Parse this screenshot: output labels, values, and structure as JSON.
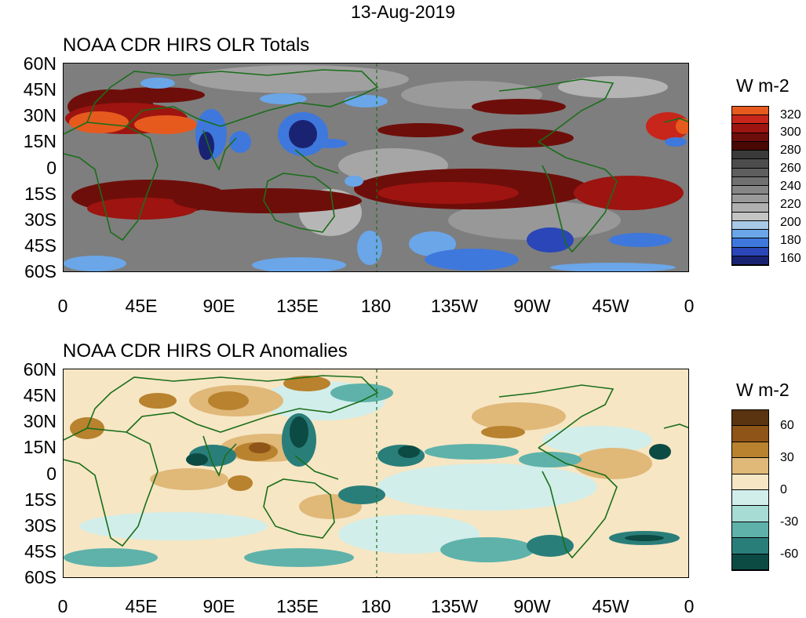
{
  "date": "13-Aug-2019",
  "panels": [
    {
      "id": "totals",
      "title": "NOAA CDR HIRS OLR Totals",
      "units": "W m-2",
      "colorbar_labels": [
        "320",
        "300",
        "280",
        "260",
        "240",
        "220",
        "200",
        "180",
        "160"
      ],
      "colorbar_colors": [
        "#e65a1e",
        "#c8261a",
        "#9e1410",
        "#6e0e0a",
        "#4a0804",
        "#3a3a3a",
        "#4c4c4c",
        "#5e5e5e",
        "#707070",
        "#868686",
        "#9a9a9a",
        "#b0b0b0",
        "#c4c4c4",
        "#a8c8e6",
        "#6aa6e8",
        "#3e78dc",
        "#2a46b8",
        "#1a2272"
      ]
    },
    {
      "id": "anomalies",
      "title": "NOAA CDR HIRS OLR Anomalies",
      "units": "W m-2",
      "colorbar_labels": [
        "60",
        "30",
        "0",
        "-30",
        "-60"
      ],
      "colorbar_colors": [
        "#5a3410",
        "#8e5418",
        "#b8822e",
        "#e0b878",
        "#f6e6c4",
        "#d2eeea",
        "#a6dcd4",
        "#5eb2aa",
        "#2a7e7a",
        "#0c4a44"
      ]
    }
  ],
  "lat_labels": [
    "60N",
    "45N",
    "30N",
    "15N",
    "0",
    "15S",
    "30S",
    "45S",
    "60S"
  ],
  "lon_labels": [
    "0",
    "45E",
    "90E",
    "135E",
    "180",
    "135W",
    "90W",
    "45W",
    "0"
  ],
  "colors": {
    "coastline": "#1a6e1a",
    "dateline": "#1a6e1a"
  }
}
